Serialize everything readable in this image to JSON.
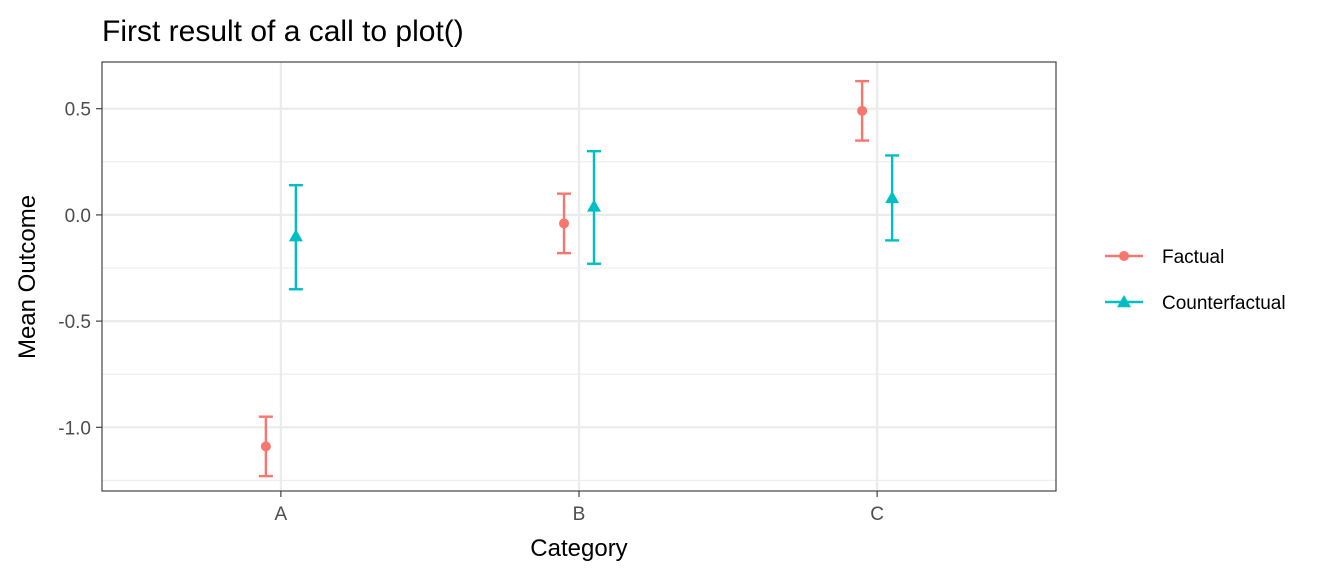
{
  "chart_data": {
    "type": "errorbar",
    "title": "First result of a call to plot()",
    "xlabel": "Category",
    "ylabel": "Mean Outcome",
    "categories": [
      "A",
      "B",
      "C"
    ],
    "ylim": [
      -1.3,
      0.72
    ],
    "y_ticks": [
      -1.0,
      -0.5,
      0.0,
      0.5
    ],
    "y_tick_labels": [
      "-1.0",
      "-0.5",
      "0.0",
      "0.5"
    ],
    "grid": true,
    "legend": {
      "position": "right"
    },
    "series": [
      {
        "name": "Factual",
        "color": "#F8766D",
        "shape": "circle",
        "points": [
          {
            "category": "A",
            "mean": -1.09,
            "lower": -1.23,
            "upper": -0.95
          },
          {
            "category": "B",
            "mean": -0.04,
            "lower": -0.18,
            "upper": 0.1
          },
          {
            "category": "C",
            "mean": 0.49,
            "lower": 0.35,
            "upper": 0.63
          }
        ]
      },
      {
        "name": "Counterfactual",
        "color": "#00BFC4",
        "shape": "triangle",
        "points": [
          {
            "category": "A",
            "mean": -0.1,
            "lower": -0.35,
            "upper": 0.14
          },
          {
            "category": "B",
            "mean": 0.04,
            "lower": -0.23,
            "upper": 0.3
          },
          {
            "category": "C",
            "mean": 0.08,
            "lower": -0.12,
            "upper": 0.28
          }
        ]
      }
    ]
  }
}
